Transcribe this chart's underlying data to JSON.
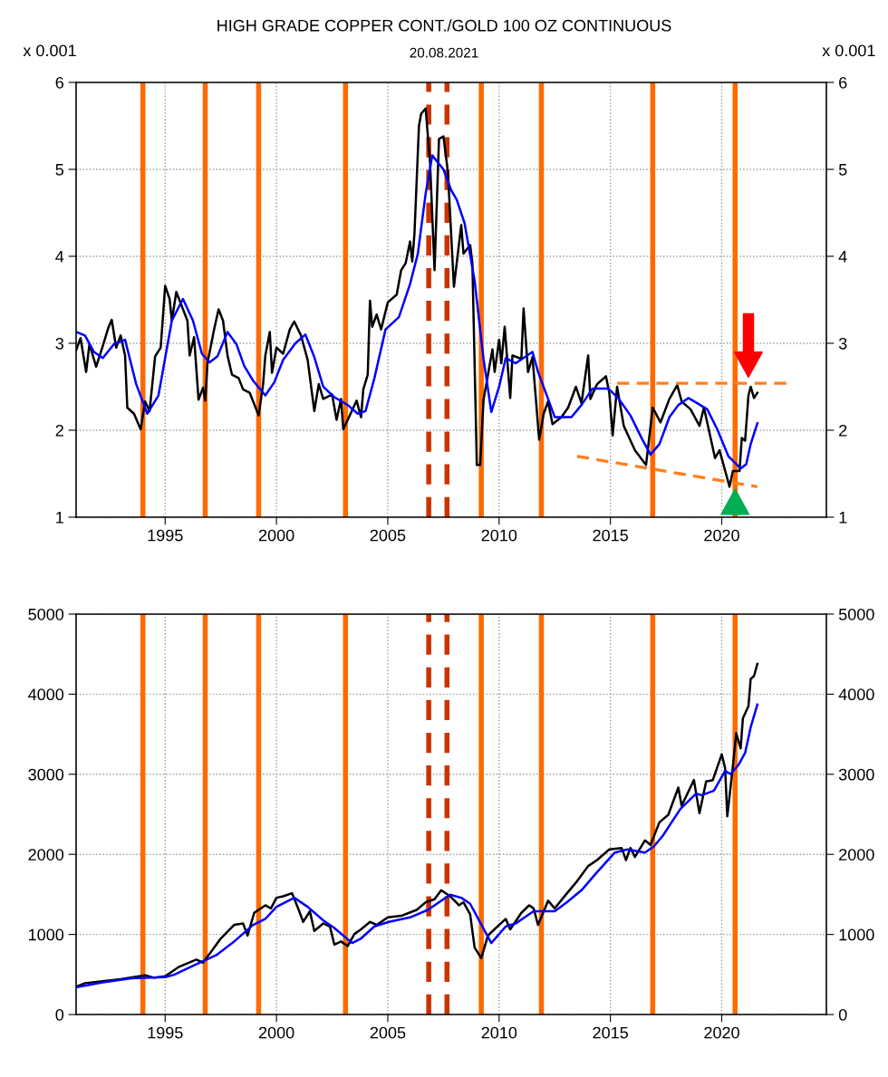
{
  "chart_data": [
    {
      "type": "line",
      "title": "HIGH GRADE COPPER CONT./GOLD 100 OZ CONTINUOUS",
      "subtitle": "20.08.2021",
      "ylabel": "x 0.001",
      "y2label": "x 0.001",
      "xlim": [
        1991,
        2024.7
      ],
      "xticks": [
        1995,
        2000,
        2005,
        2010,
        2015,
        2020
      ],
      "ylim": [
        1,
        6
      ],
      "yticks": [
        1,
        2,
        3,
        4,
        5,
        6
      ],
      "y2lim": [
        1,
        6
      ],
      "y2ticks": [
        1,
        2,
        3,
        4,
        5,
        6
      ],
      "grid": true,
      "series": [
        {
          "color": "#000000",
          "x": [
            1991.0,
            1991.2,
            1991.45,
            1991.6,
            1991.9,
            1992.2,
            1992.45,
            1992.6,
            1992.8,
            1993.0,
            1993.2,
            1993.3,
            1993.6,
            1993.9,
            1994.1,
            1994.3,
            1994.55,
            1994.8,
            1995.0,
            1995.2,
            1995.3,
            1995.5,
            1996.0,
            1996.1,
            1996.3,
            1996.5,
            1996.7,
            1996.8,
            1996.9,
            1997.2,
            1997.4,
            1997.6,
            1997.8,
            1998.0,
            1998.3,
            1998.5,
            1998.8,
            1999.2,
            1999.4,
            1999.5,
            1999.7,
            1999.8,
            2000.0,
            2000.3,
            2000.6,
            2000.8,
            2001.1,
            2001.4,
            2001.7,
            2001.9,
            2002.1,
            2002.5,
            2002.7,
            2002.9,
            2003.0,
            2003.2,
            2003.6,
            2003.8,
            2003.9,
            2004.1,
            2004.2,
            2004.3,
            2004.5,
            2004.7,
            2005.0,
            2005.4,
            2005.6,
            2005.8,
            2006.0,
            2006.1,
            2006.2,
            2006.4,
            2006.5,
            2006.7,
            2006.9,
            2007.1,
            2007.3,
            2007.5,
            2007.7,
            2007.97,
            2008.3,
            2008.4,
            2008.7,
            2008.8,
            2009.0,
            2009.15,
            2009.3,
            2009.7,
            2009.8,
            2010.0,
            2010.1,
            2010.25,
            2010.5,
            2010.6,
            2011.0,
            2011.1,
            2011.3,
            2011.5,
            2011.8,
            2012.0,
            2012.2,
            2012.4,
            2012.8,
            2013.1,
            2013.45,
            2013.7,
            2014.0,
            2014.1,
            2014.4,
            2014.8,
            2014.95,
            2015.1,
            2015.3,
            2015.6,
            2016.1,
            2016.6,
            2016.9,
            2017.25,
            2017.65,
            2018.0,
            2018.2,
            2018.6,
            2019.0,
            2019.2,
            2019.7,
            2019.9,
            2020.2,
            2020.35,
            2020.5,
            2020.8,
            2020.9,
            2021.05,
            2021.2,
            2021.3,
            2021.45,
            2021.6
          ],
          "values": [
            2.92,
            3.06,
            2.67,
            2.99,
            2.73,
            2.97,
            3.18,
            3.27,
            2.95,
            3.09,
            2.86,
            2.26,
            2.19,
            2.01,
            2.33,
            2.22,
            2.85,
            2.95,
            3.66,
            3.51,
            3.26,
            3.59,
            3.26,
            2.86,
            3.07,
            2.35,
            2.49,
            2.34,
            2.77,
            3.16,
            3.39,
            3.26,
            2.86,
            2.64,
            2.6,
            2.47,
            2.43,
            2.17,
            2.53,
            2.86,
            3.13,
            2.66,
            2.95,
            2.88,
            3.16,
            3.25,
            3.09,
            2.81,
            2.22,
            2.53,
            2.36,
            2.41,
            2.12,
            2.36,
            2.01,
            2.12,
            2.34,
            2.15,
            2.47,
            2.64,
            3.49,
            3.19,
            3.33,
            3.16,
            3.47,
            3.56,
            3.84,
            3.92,
            4.17,
            3.94,
            4.27,
            5.5,
            5.64,
            5.7,
            5.07,
            3.84,
            5.35,
            5.38,
            4.97,
            3.65,
            4.36,
            4.03,
            4.13,
            3.92,
            1.6,
            1.6,
            2.35,
            2.93,
            2.67,
            3.04,
            2.77,
            3.19,
            2.37,
            2.86,
            2.82,
            3.4,
            2.67,
            2.84,
            1.89,
            2.19,
            2.33,
            2.07,
            2.15,
            2.26,
            2.5,
            2.31,
            2.86,
            2.36,
            2.53,
            2.62,
            2.43,
            1.94,
            2.5,
            2.05,
            1.77,
            1.6,
            2.26,
            2.09,
            2.36,
            2.52,
            2.33,
            2.24,
            2.05,
            2.26,
            1.68,
            1.77,
            1.49,
            1.35,
            1.53,
            1.53,
            1.91,
            1.88,
            2.4,
            2.5,
            2.37,
            2.43
          ]
        },
        {
          "color": "#0000ff",
          "x": [
            1991.0,
            1991.4,
            1991.8,
            1992.2,
            1992.7,
            1993.2,
            1993.7,
            1994.2,
            1994.7,
            1995.3,
            1995.8,
            1996.25,
            1996.65,
            1997.0,
            1997.35,
            1997.8,
            1998.2,
            1998.55,
            1998.95,
            1999.5,
            1999.9,
            2000.3,
            2000.85,
            2001.3,
            2001.7,
            2002.1,
            2002.6,
            2003.2,
            2003.65,
            2004.0,
            2004.4,
            2004.9,
            2005.5,
            2006.0,
            2006.35,
            2006.7,
            2007.0,
            2007.5,
            2007.85,
            2008.1,
            2008.45,
            2008.9,
            2009.3,
            2009.65,
            2010.0,
            2010.3,
            2010.75,
            2011.15,
            2011.5,
            2011.75,
            2012.2,
            2012.5,
            2013.25,
            2013.7,
            2014.2,
            2014.9,
            2015.35,
            2015.9,
            2016.4,
            2016.8,
            2017.2,
            2017.65,
            2018.05,
            2018.5,
            2018.9,
            2019.35,
            2019.8,
            2020.3,
            2020.85,
            2021.1,
            2021.3,
            2021.6
          ],
          "values": [
            3.13,
            3.09,
            2.9,
            2.83,
            2.99,
            3.04,
            2.53,
            2.19,
            2.4,
            3.26,
            3.51,
            3.26,
            2.88,
            2.78,
            2.85,
            3.13,
            2.99,
            2.74,
            2.57,
            2.4,
            2.55,
            2.81,
            3.0,
            3.1,
            2.84,
            2.5,
            2.38,
            2.29,
            2.19,
            2.22,
            2.6,
            3.16,
            3.3,
            3.68,
            4.03,
            4.72,
            5.16,
            5.0,
            4.76,
            4.65,
            4.38,
            3.72,
            2.82,
            2.21,
            2.5,
            2.83,
            2.77,
            2.84,
            2.9,
            2.67,
            2.36,
            2.15,
            2.15,
            2.29,
            2.48,
            2.48,
            2.37,
            2.17,
            1.91,
            1.72,
            1.84,
            2.15,
            2.29,
            2.37,
            2.31,
            2.24,
            2.01,
            1.7,
            1.56,
            1.61,
            1.84,
            2.08
          ]
        },
        {
          "color": "#ff7f1e",
          "line_style": "dashed",
          "x": [
            2015.3,
            2023.0
          ],
          "values": [
            2.54,
            2.54
          ]
        },
        {
          "color": "#ff7f1e",
          "line_style": "dashed",
          "x": [
            2013.5,
            2021.6
          ],
          "values": [
            1.7,
            1.35
          ]
        }
      ],
      "ref_lines": [
        {
          "axis": "x",
          "value": 1994.0,
          "color": "#ff6a00"
        },
        {
          "axis": "x",
          "value": 1996.8,
          "color": "#ff6a00"
        },
        {
          "axis": "x",
          "value": 1999.2,
          "color": "#ff6a00"
        },
        {
          "axis": "x",
          "value": 2003.1,
          "color": "#ff6a00"
        },
        {
          "axis": "x",
          "value": 2006.84,
          "color": "#cc3300",
          "line_style": "dashed"
        },
        {
          "axis": "x",
          "value": 2007.66,
          "color": "#cc3300",
          "line_style": "dashed"
        },
        {
          "axis": "x",
          "value": 2009.2,
          "color": "#ff6a00"
        },
        {
          "axis": "x",
          "value": 2011.9,
          "color": "#ff6a00"
        },
        {
          "axis": "x",
          "value": 2016.9,
          "color": "#ff6a00"
        },
        {
          "axis": "x",
          "value": 2020.6,
          "color": "#ff6a00"
        }
      ]
    },
    {
      "type": "line",
      "xlim": [
        1991,
        2024.7
      ],
      "xticks": [
        1995,
        2000,
        2005,
        2010,
        2015,
        2020
      ],
      "ylim": [
        0,
        5000
      ],
      "yticks": [
        0,
        1000,
        2000,
        3000,
        4000,
        5000
      ],
      "y2lim": [
        0,
        5000
      ],
      "y2ticks": [
        0,
        1000,
        2000,
        3000,
        4000,
        5000
      ],
      "grid": true,
      "series": [
        {
          "color": "#000000",
          "x": [
            1991.0,
            1991.4,
            1992.1,
            1993.0,
            1994.1,
            1994.5,
            1995.0,
            1995.6,
            1996.4,
            1996.7,
            1997.1,
            1997.5,
            1998.1,
            1998.5,
            1998.7,
            1999.0,
            1999.5,
            1999.75,
            2000.0,
            2000.3,
            2000.7,
            2001.0,
            2001.2,
            2001.5,
            2001.7,
            2002.1,
            2002.4,
            2002.6,
            2002.9,
            2003.2,
            2003.5,
            2003.8,
            2004.2,
            2004.5,
            2005.0,
            2005.6,
            2006.3,
            2006.7,
            2007.1,
            2007.4,
            2007.8,
            2008.2,
            2008.4,
            2008.7,
            2008.9,
            2009.2,
            2009.5,
            2010.0,
            2010.3,
            2010.5,
            2011.0,
            2011.35,
            2011.55,
            2011.75,
            2012.2,
            2012.5,
            2013.05,
            2013.45,
            2014.0,
            2014.4,
            2014.95,
            2015.5,
            2015.7,
            2015.9,
            2016.1,
            2016.55,
            2016.8,
            2017.2,
            2017.6,
            2018.05,
            2018.2,
            2018.75,
            2019.0,
            2019.3,
            2019.6,
            2020.0,
            2020.15,
            2020.25,
            2020.5,
            2020.65,
            2020.85,
            2020.95,
            2021.2,
            2021.3,
            2021.45,
            2021.6
          ],
          "values": [
            347,
            392,
            414,
            441,
            490,
            460,
            478,
            592,
            686,
            648,
            799,
            950,
            1119,
            1138,
            987,
            1270,
            1364,
            1326,
            1458,
            1477,
            1515,
            1307,
            1157,
            1289,
            1044,
            1138,
            1100,
            874,
            912,
            855,
            1006,
            1063,
            1157,
            1119,
            1213,
            1232,
            1307,
            1402,
            1439,
            1552,
            1477,
            1364,
            1402,
            1251,
            836,
            705,
            987,
            1119,
            1194,
            1063,
            1270,
            1364,
            1326,
            1119,
            1421,
            1326,
            1515,
            1647,
            1854,
            1929,
            2061,
            2080,
            1929,
            2080,
            1967,
            2174,
            2118,
            2400,
            2494,
            2834,
            2607,
            2928,
            2513,
            2909,
            2928,
            3248,
            3079,
            2476,
            3097,
            3512,
            3323,
            3700,
            3851,
            4190,
            4228,
            4378
          ]
        },
        {
          "color": "#0000ff",
          "x": [
            1991.0,
            1992.2,
            1993.5,
            1995.0,
            1995.4,
            1996.5,
            1997.3,
            1998.1,
            1998.95,
            1999.5,
            2000.0,
            2000.8,
            2001.4,
            2002.1,
            2002.6,
            2003.4,
            2003.8,
            2004.4,
            2005.05,
            2006.0,
            2006.8,
            2007.8,
            2008.3,
            2008.7,
            2009.1,
            2009.65,
            2010.3,
            2010.75,
            2011.55,
            2012.5,
            2013.05,
            2013.7,
            2014.4,
            2015.2,
            2015.75,
            2016.55,
            2016.95,
            2017.35,
            2018.15,
            2018.85,
            2019.1,
            2019.65,
            2020.15,
            2020.4,
            2020.75,
            2021.05,
            2021.3,
            2021.6
          ],
          "values": [
            339,
            403,
            452,
            467,
            497,
            641,
            742,
            912,
            1119,
            1194,
            1345,
            1458,
            1345,
            1176,
            1081,
            893,
            950,
            1100,
            1157,
            1213,
            1307,
            1496,
            1458,
            1383,
            1176,
            893,
            1100,
            1138,
            1289,
            1289,
            1402,
            1552,
            1778,
            2023,
            2061,
            2023,
            2099,
            2231,
            2570,
            2758,
            2739,
            2796,
            3041,
            3003,
            3116,
            3267,
            3587,
            3870
          ]
        }
      ],
      "ref_lines": [
        {
          "axis": "x",
          "value": 1994.0,
          "color": "#ff6a00"
        },
        {
          "axis": "x",
          "value": 1996.8,
          "color": "#ff6a00"
        },
        {
          "axis": "x",
          "value": 1999.2,
          "color": "#ff6a00"
        },
        {
          "axis": "x",
          "value": 2003.1,
          "color": "#ff6a00"
        },
        {
          "axis": "x",
          "value": 2006.84,
          "color": "#cc3300",
          "line_style": "dashed"
        },
        {
          "axis": "x",
          "value": 2007.66,
          "color": "#cc3300",
          "line_style": "dashed"
        },
        {
          "axis": "x",
          "value": 2009.2,
          "color": "#ff6a00"
        },
        {
          "axis": "x",
          "value": 2011.9,
          "color": "#ff6a00"
        },
        {
          "axis": "x",
          "value": 2016.9,
          "color": "#ff6a00"
        },
        {
          "axis": "x",
          "value": 2020.6,
          "color": "#ff6a00"
        }
      ]
    }
  ]
}
